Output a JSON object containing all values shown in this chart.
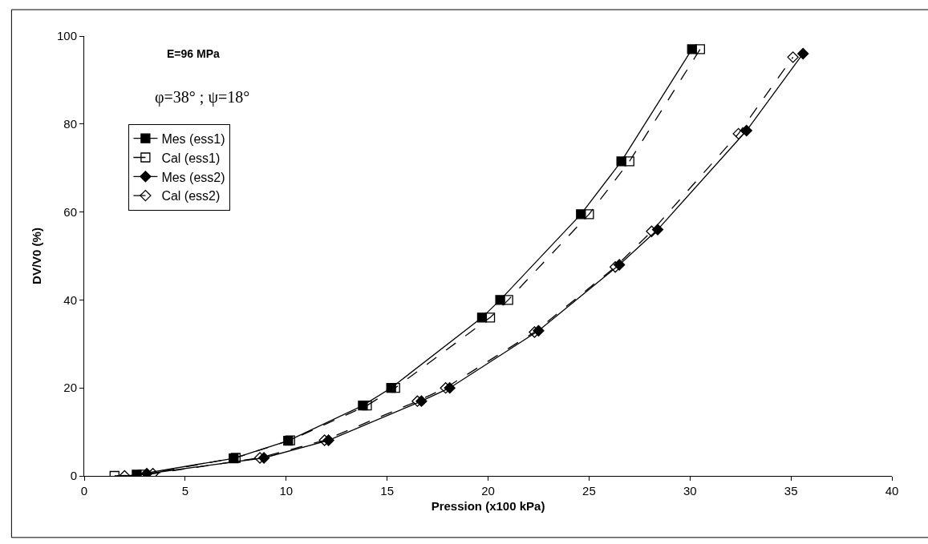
{
  "chart_data": {
    "type": "line",
    "xlabel": "Pression (x100 kPa)",
    "ylabel": "DV/V0 (%)",
    "xlim": [
      0,
      40
    ],
    "xticks": [
      0,
      5,
      10,
      15,
      20,
      25,
      30,
      35,
      40
    ],
    "ylim": [
      0,
      100
    ],
    "yticks": [
      0,
      20,
      40,
      60,
      80,
      100
    ],
    "legend": "top left",
    "annotations": [
      "E=96 MPa",
      "φ=38° ; ψ=18°"
    ],
    "series": [
      {
        "name": "Mes (ess1)",
        "color": "#000000",
        "marker": "square",
        "line_style": "solid",
        "x": [
          2.6,
          7.4,
          10.1,
          13.8,
          15.2,
          19.7,
          20.6,
          24.6,
          26.6,
          30.1
        ],
        "values": [
          0.3,
          4,
          8,
          16,
          20,
          36,
          40,
          59.5,
          71.5,
          97
        ]
      },
      {
        "name": "Cal (ess1)",
        "color": "#000000",
        "marker": "square",
        "line_style": "dashed",
        "x": [
          1.5,
          2.9,
          7.5,
          10.2,
          14,
          15.4,
          20.1,
          21,
          25,
          27,
          30.5
        ],
        "values": [
          0,
          0.3,
          4.1,
          8.1,
          16,
          20,
          36,
          40,
          59.5,
          71.5,
          97
        ]
      },
      {
        "name": "Mes (ess2)",
        "color": "#000000",
        "marker": "diamond",
        "line_style": "solid",
        "x": [
          3.1,
          8.9,
          12.1,
          16.7,
          18.1,
          22.5,
          26.5,
          28.4,
          32.8,
          35.6
        ],
        "values": [
          0.5,
          4.1,
          8.1,
          17,
          20,
          33,
          48,
          56,
          78.5,
          96
        ]
      },
      {
        "name": "Cal (ess2)",
        "color": "#000000",
        "marker": "diamond",
        "line_style": "dashed",
        "x": [
          2,
          3.4,
          8.7,
          11.9,
          16.5,
          17.9,
          22.3,
          26.3,
          28.1,
          32.4,
          35.1
        ],
        "values": [
          0,
          0.5,
          4.1,
          8.1,
          17,
          20,
          32.7,
          47.5,
          55.6,
          77.8,
          95.2
        ]
      }
    ]
  }
}
